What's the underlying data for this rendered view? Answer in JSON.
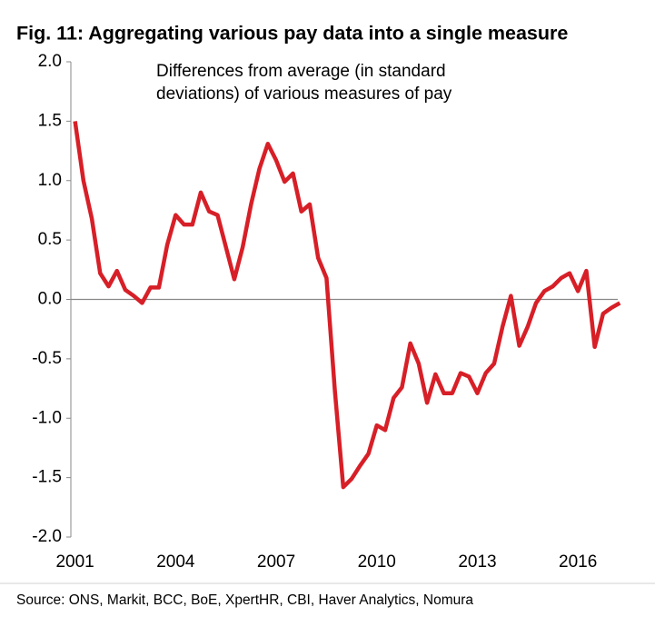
{
  "chart_data": {
    "type": "line",
    "title": "Fig. 11: Aggregating various pay data into a single measure",
    "annotation": [
      "Differences from average (in standard",
      "deviations) of various measures of pay"
    ],
    "source": "Source: ONS, Markit, BCC, BoE, XpertHR, CBI, Haver Analytics, Nomura",
    "x": [
      2001,
      2001.25,
      2001.5,
      2001.75,
      2002,
      2002.25,
      2002.5,
      2002.75,
      2003,
      2003.25,
      2003.5,
      2003.75,
      2004,
      2004.25,
      2004.5,
      2004.75,
      2005,
      2005.25,
      2005.5,
      2005.75,
      2006,
      2006.25,
      2006.5,
      2006.75,
      2007,
      2007.25,
      2007.5,
      2007.75,
      2008,
      2008.25,
      2008.5,
      2008.75,
      2009,
      2009.25,
      2009.5,
      2009.75,
      2010,
      2010.25,
      2010.5,
      2010.75,
      2011,
      2011.25,
      2011.5,
      2011.75,
      2012,
      2012.25,
      2012.5,
      2012.75,
      2013,
      2013.25,
      2013.5,
      2013.75,
      2014,
      2014.25,
      2014.5,
      2014.75,
      2015,
      2015.25,
      2015.5,
      2015.75,
      2016,
      2016.25,
      2016.5,
      2016.75,
      2017,
      2017.25
    ],
    "series": [
      {
        "color": "#d71f27",
        "values": [
          1.5,
          1.0,
          0.68,
          0.22,
          0.11,
          0.24,
          0.08,
          0.03,
          -0.03,
          0.1,
          0.1,
          0.46,
          0.71,
          0.63,
          0.63,
          0.9,
          0.74,
          0.71,
          0.44,
          0.17,
          0.44,
          0.8,
          1.1,
          1.31,
          1.17,
          0.99,
          1.06,
          0.74,
          0.8,
          0.35,
          0.18,
          -0.77,
          -1.58,
          -1.51,
          -1.4,
          -1.3,
          -1.06,
          -1.1,
          -0.83,
          -0.74,
          -0.37,
          -0.54,
          -0.87,
          -0.63,
          -0.79,
          -0.79,
          -0.62,
          -0.65,
          -0.79,
          -0.62,
          -0.54,
          -0.23,
          0.03,
          -0.39,
          -0.23,
          -0.03,
          0.07,
          0.11,
          0.18,
          0.22,
          0.07,
          0.24,
          -0.4,
          -0.12,
          -0.07,
          -0.03
        ]
      }
    ],
    "xlim": [
      2000.875,
      2018
    ],
    "xticks": [
      2001,
      2004,
      2007,
      2010,
      2013,
      2016
    ],
    "ylim": [
      -2,
      2
    ],
    "yticks": [
      {
        "value": 2,
        "label": "2.0"
      },
      {
        "value": 1.5,
        "label": "1.5"
      },
      {
        "value": 1,
        "label": "1.0"
      },
      {
        "value": 0.5,
        "label": "0.5"
      },
      {
        "value": 0,
        "label": "0.0"
      },
      {
        "value": -0.5,
        "label": "-0.5"
      },
      {
        "value": -1,
        "label": "-1.0"
      },
      {
        "value": -1.5,
        "label": "-1.5"
      },
      {
        "value": -2,
        "label": "-2.0"
      }
    ],
    "grid": false
  }
}
